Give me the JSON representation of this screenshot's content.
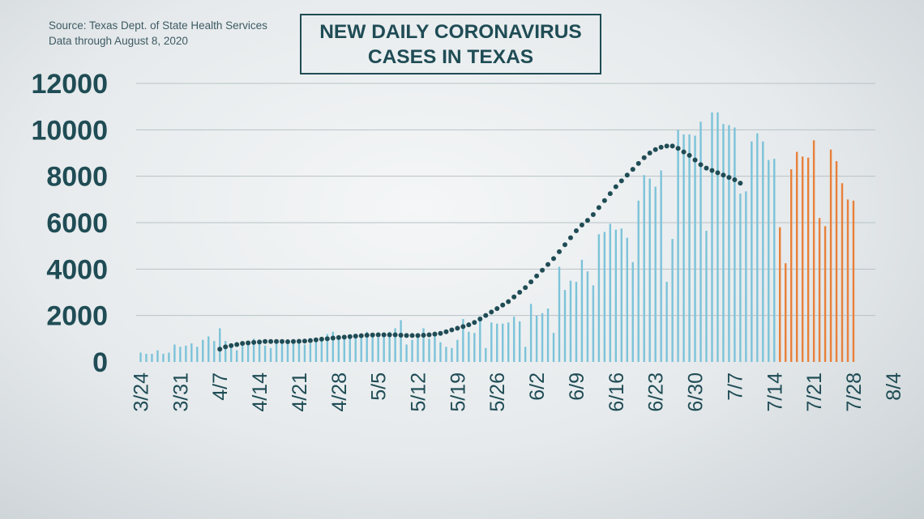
{
  "source": {
    "line1": "Source: Texas Dept. of State Health Services",
    "line2": "Data through August 8, 2020"
  },
  "title": {
    "line1": "NEW DAILY CORONAVIRUS",
    "line2": "CASES IN TEXAS"
  },
  "colors": {
    "bar": "#7cc3d9",
    "bar_recent": "#e8803a",
    "average_dots": "#1f4c55",
    "axis_text": "#1f4c55",
    "grid": "#b8c2c6"
  },
  "chart_data": {
    "type": "bar",
    "ylim": [
      0,
      12000
    ],
    "yticks": [
      0,
      2000,
      4000,
      6000,
      8000,
      10000,
      12000
    ],
    "x_tick_labels": [
      "3/24",
      "3/31",
      "4/7",
      "4/14",
      "4/21",
      "4/28",
      "5/5",
      "5/12",
      "5/19",
      "5/26",
      "6/2",
      "6/9",
      "6/16",
      "6/23",
      "6/30",
      "7/7",
      "7/14",
      "7/21",
      "7/28",
      "8/4"
    ],
    "x_tick_positions": [
      0,
      7,
      14,
      21,
      28,
      35,
      42,
      49,
      56,
      63,
      70,
      77,
      84,
      91,
      98,
      105,
      112,
      119,
      126,
      133
    ],
    "series": [
      {
        "type": "bar",
        "values": [
          400,
          350,
          350,
          500,
          350,
          400,
          750,
          650,
          700,
          800,
          650,
          950,
          1100,
          900,
          1450,
          900,
          750,
          500,
          800,
          900,
          1000,
          950,
          700,
          600,
          850,
          950,
          900,
          900,
          950,
          750,
          800,
          900,
          1050,
          1200,
          1300,
          1050,
          1100,
          1100,
          1200,
          1200,
          1300,
          1250,
          1050,
          1200,
          1300,
          1450,
          1800,
          750,
          950,
          1100,
          1450,
          1000,
          1300,
          850,
          650,
          600,
          950,
          1850,
          1300,
          1250,
          1950,
          600,
          1700,
          1650,
          1650,
          1700,
          1950,
          1750,
          650,
          2500,
          2000,
          2100,
          2300,
          1250,
          4100,
          3100,
          3500,
          3450,
          4400,
          3900,
          3300,
          5500,
          5600,
          5950,
          5700,
          5750,
          5350,
          4300,
          6950,
          8050,
          7900,
          7550,
          8250,
          3450,
          5300,
          10000,
          9800,
          9800,
          9750,
          10350,
          5650,
          10750,
          10750,
          10250,
          10200,
          10100,
          7250,
          7350,
          9500,
          9850,
          9500,
          8700,
          8750
        ]
      },
      {
        "type": "bar",
        "values": [
          5800,
          4250,
          8300,
          9050,
          8850,
          8800,
          9550,
          6200,
          5850,
          9150,
          8650,
          7700,
          7000,
          6950
        ]
      },
      {
        "type": "line",
        "values": [
          550,
          650,
          700,
          750,
          800,
          820,
          840,
          860,
          880,
          880,
          880,
          880,
          870,
          880,
          890,
          900,
          920,
          950,
          980,
          1000,
          1030,
          1050,
          1070,
          1090,
          1110,
          1130,
          1150,
          1160,
          1170,
          1170,
          1170,
          1170,
          1150,
          1140,
          1140,
          1140,
          1150,
          1170,
          1200,
          1230,
          1300,
          1380,
          1450,
          1520,
          1600,
          1700,
          1850,
          2000,
          2150,
          2300,
          2450,
          2600,
          2800,
          3000,
          3200,
          3450,
          3700,
          3950,
          4200,
          4450,
          4750,
          5050,
          5350,
          5650,
          5900,
          6100,
          6350,
          6650,
          6950,
          7250,
          7550,
          7800,
          8050,
          8300,
          8550,
          8800,
          9000,
          9150,
          9250,
          9300,
          9300,
          9200,
          9050,
          8900,
          8700,
          8500,
          8350,
          8250,
          8150,
          8050,
          7950,
          7850,
          7700
        ]
      }
    ]
  }
}
